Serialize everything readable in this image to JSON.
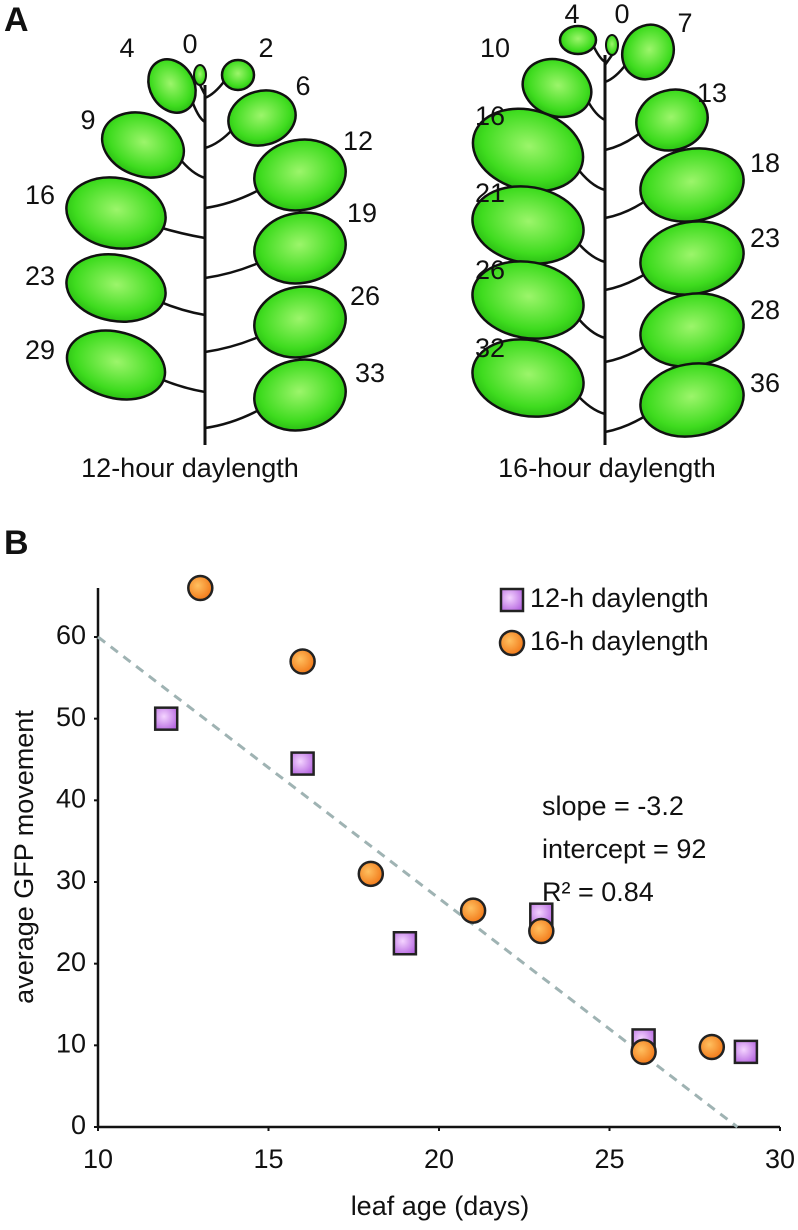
{
  "panel_a": {
    "label": "A",
    "plants": [
      {
        "caption": "12-hour daylength",
        "apex": 0,
        "left_leaves": [
          4,
          9,
          16,
          23,
          29
        ],
        "right_leaves": [
          2,
          6,
          12,
          19,
          26,
          33
        ]
      },
      {
        "caption": "16-hour daylength",
        "apex": 0,
        "left_leaves": [
          4,
          10,
          16,
          21,
          26,
          32
        ],
        "right_leaves": [
          7,
          13,
          18,
          23,
          28,
          36
        ]
      }
    ]
  },
  "chart_data": {
    "type": "scatter",
    "label": "B",
    "x_label": "leaf age (days)",
    "y_label": "average GFP movement",
    "xlim": [
      10,
      30
    ],
    "xticks": [
      10,
      15,
      20,
      25,
      30
    ],
    "ylim": [
      0,
      66
    ],
    "yticks": [
      0,
      10,
      20,
      30,
      40,
      50,
      60
    ],
    "grid": false,
    "legend": "upper right",
    "series": [
      {
        "name": "12-h daylength",
        "color": "#c77ee8",
        "marker": "square",
        "x": [
          12,
          16,
          19,
          23,
          26,
          29
        ],
        "values": [
          50,
          44.5,
          22.5,
          26,
          10.6,
          9.2
        ]
      },
      {
        "name": "16-h daylength",
        "color": "#f7891e",
        "marker": "circle",
        "x": [
          13,
          16,
          18,
          21,
          23,
          26,
          28
        ],
        "values": [
          66,
          57,
          31,
          26.5,
          24,
          9.2,
          9.8
        ]
      }
    ],
    "fit": {
      "slope": -3.2,
      "intercept": 92,
      "color": "#9fb3b3"
    },
    "annotations": [
      "slope = -3.2",
      "intercept = 92",
      "R² = 0.84"
    ]
  }
}
